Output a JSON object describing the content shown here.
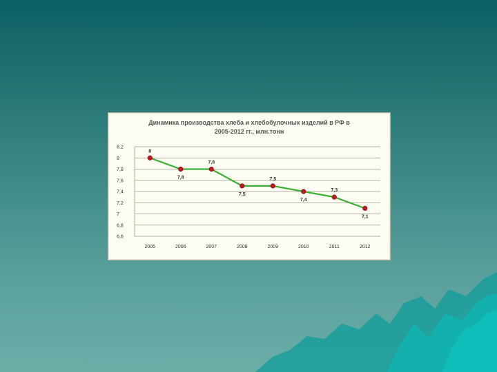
{
  "slide": {
    "background_top": "#0b5f63",
    "background_bottom": "#6aaea8",
    "art_color": "#1aa3a0"
  },
  "chart_data": {
    "type": "line",
    "title_line1": "Динамика производства хлеба и хлебобулочных изделий в РФ в",
    "title_line2": "2005-2012 гг., млн.тонн",
    "categories": [
      "2005",
      "2006",
      "2007",
      "2008",
      "2009",
      "2010",
      "2011",
      "2012"
    ],
    "values": [
      8,
      7.8,
      7.8,
      7.5,
      7.5,
      7.4,
      7.3,
      7.1
    ],
    "value_labels": [
      "8",
      "7,8",
      "7,8",
      "7,5",
      "7,5",
      "7,4",
      "7,3",
      "7,1"
    ],
    "label_positions": [
      "above",
      "below",
      "above",
      "below",
      "above",
      "below",
      "above",
      "below"
    ],
    "ylim": [
      6.6,
      8.2
    ],
    "y_ticks": [
      8.2,
      8,
      7.8,
      7.6,
      7.4,
      7.2,
      7,
      6.8,
      6.6
    ],
    "y_tick_labels": [
      "8,2",
      "8",
      "7,8",
      "7,6",
      "7,4",
      "7,2",
      "7",
      "6,8",
      "6,6"
    ],
    "grid": true,
    "line_color": "#3cb034",
    "marker_color": "#c0181c",
    "xlabel": "",
    "ylabel": ""
  }
}
